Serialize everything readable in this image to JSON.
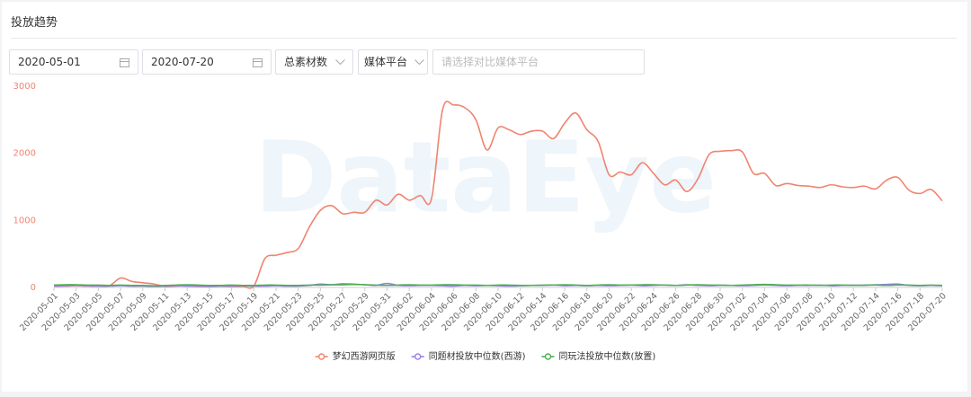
{
  "header": {
    "title": "投放趋势"
  },
  "filters": {
    "start_date": "2020-05-01",
    "end_date": "2020-07-20",
    "metric": "总素材数",
    "platform": "媒体平台",
    "compare_placeholder": "请选择对比媒体平台"
  },
  "watermark": "DataEye",
  "chart_data": {
    "type": "line",
    "categories": [
      "2020-05-01",
      null,
      "2020-05-03",
      null,
      "2020-05-05",
      null,
      "2020-05-07",
      null,
      "2020-05-09",
      null,
      "2020-05-11",
      null,
      "2020-05-13",
      null,
      "2020-05-15",
      null,
      "2020-05-17",
      null,
      "2020-05-19",
      null,
      "2020-05-21",
      null,
      "2020-05-23",
      null,
      "2020-05-25",
      null,
      "2020-05-27",
      null,
      "2020-05-29",
      null,
      "2020-05-31",
      null,
      "2020-06-02",
      null,
      "2020-06-04",
      null,
      "2020-06-06",
      null,
      "2020-06-08",
      null,
      "2020-06-10",
      null,
      "2020-06-12",
      null,
      "2020-06-14",
      null,
      "2020-06-16",
      null,
      "2020-06-18",
      null,
      "2020-06-20",
      null,
      "2020-06-22",
      null,
      "2020-06-24",
      null,
      "2020-06-26",
      null,
      "2020-06-28",
      null,
      "2020-06-30",
      null,
      "2020-07-02",
      null,
      "2020-07-04",
      null,
      "2020-07-06",
      null,
      "2020-07-08",
      null,
      "2020-07-10",
      null,
      "2020-07-12",
      null,
      "2020-07-14",
      null,
      "2020-07-16",
      null,
      "2020-07-18",
      null,
      "2020-07-20"
    ],
    "series": [
      {
        "name": "梦幻西游网页版",
        "color": "#f08470",
        "values": [
          20,
          20,
          25,
          20,
          20,
          25,
          140,
          90,
          70,
          50,
          15,
          20,
          25,
          15,
          15,
          20,
          15,
          15,
          20,
          430,
          480,
          520,
          580,
          900,
          1150,
          1220,
          1100,
          1120,
          1120,
          1300,
          1230,
          1390,
          1300,
          1370,
          1320,
          2650,
          2720,
          2680,
          2500,
          2050,
          2380,
          2350,
          2280,
          2330,
          2330,
          2220,
          2450,
          2600,
          2350,
          2180,
          1680,
          1720,
          1680,
          1860,
          1700,
          1530,
          1600,
          1430,
          1620,
          1980,
          2030,
          2040,
          2020,
          1700,
          1700,
          1520,
          1550,
          1520,
          1510,
          1490,
          1530,
          1500,
          1490,
          1510,
          1470,
          1600,
          1640,
          1450,
          1400,
          1460,
          1290
        ]
      },
      {
        "name": "同题材投放中位数(西游)",
        "color": "#9b7fe6",
        "values": [
          20,
          25,
          30,
          25,
          20,
          20,
          25,
          20,
          20,
          15,
          20,
          25,
          20,
          20,
          15,
          20,
          20,
          25,
          20,
          20,
          25,
          20,
          20,
          30,
          50,
          40,
          55,
          50,
          40,
          30,
          60,
          30,
          25,
          30,
          30,
          25,
          20,
          30,
          25,
          30,
          25,
          20,
          25,
          30,
          30,
          35,
          25,
          30,
          25,
          30,
          25,
          30,
          35,
          25,
          30,
          35,
          30,
          40,
          30,
          25,
          30,
          30,
          25,
          30,
          35,
          30,
          25,
          30,
          30,
          35,
          25,
          30,
          35,
          30,
          40,
          45,
          50,
          30,
          25,
          30,
          25
        ]
      },
      {
        "name": "同玩法投放中位数(放置)",
        "color": "#4caf50",
        "values": [
          35,
          40,
          40,
          35,
          35,
          30,
          35,
          30,
          30,
          25,
          30,
          35,
          40,
          35,
          30,
          30,
          35,
          30,
          30,
          35,
          35,
          30,
          30,
          35,
          35,
          40,
          40,
          45,
          40,
          35,
          30,
          35,
          40,
          35,
          35,
          40,
          40,
          35,
          35,
          30,
          35,
          35,
          30,
          30,
          35,
          35,
          40,
          35,
          30,
          35,
          40,
          35,
          35,
          40,
          40,
          35,
          30,
          35,
          40,
          35,
          35,
          30,
          35,
          40,
          45,
          40,
          35,
          35,
          35,
          30,
          35,
          35,
          30,
          35,
          35,
          30,
          35,
          35,
          30,
          35,
          30
        ]
      }
    ],
    "ylim": [
      0,
      3000
    ],
    "yticks": [
      0,
      1000,
      2000,
      3000
    ],
    "ytick_color": "#f08470",
    "grid": false,
    "legend": "bottom"
  }
}
